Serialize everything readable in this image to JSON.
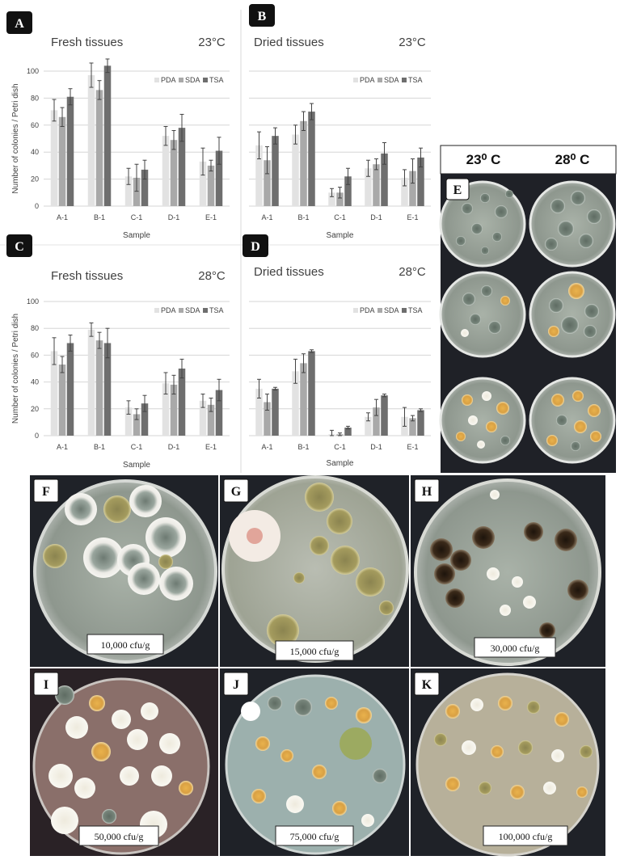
{
  "colors": {
    "PDA": "#e2e2e2",
    "SDA": "#a9a9a9",
    "TSA": "#6e6e6e",
    "grid": "#d6d6d6",
    "error_bar": "#444444",
    "photo_bg": "#1d1f24"
  },
  "chart_data": [
    {
      "panel": "A",
      "type": "bar",
      "title": "Fresh tissues",
      "temperature": "23°C",
      "xlabel": "Sample",
      "ylabel": "Number of colonies / Petri dish",
      "ylim": [
        0,
        100
      ],
      "yticks": [
        0,
        20,
        40,
        60,
        80,
        100
      ],
      "categories": [
        "A-1",
        "B-1",
        "C-1",
        "D-1",
        "E-1"
      ],
      "legend_position": "top-right",
      "series": [
        {
          "name": "PDA",
          "values": [
            71,
            97,
            22,
            52,
            33
          ],
          "errors": [
            8,
            9,
            6,
            7,
            10
          ]
        },
        {
          "name": "SDA",
          "values": [
            66,
            86,
            21,
            49,
            30
          ],
          "errors": [
            7,
            7,
            10,
            7,
            4
          ]
        },
        {
          "name": "TSA",
          "values": [
            81,
            104,
            27,
            58,
            41
          ],
          "errors": [
            6,
            5,
            7,
            10,
            10
          ]
        }
      ]
    },
    {
      "panel": "B",
      "type": "bar",
      "title": "Dried tissues",
      "temperature": "23°C",
      "xlabel": "Sample",
      "ylabel": "",
      "ylim": [
        0,
        100
      ],
      "yticks": [
        0,
        20,
        40,
        60,
        80,
        100
      ],
      "categories": [
        "A-1",
        "B-1",
        "C-1",
        "D-1",
        "E-1"
      ],
      "legend_position": "top-right",
      "series": [
        {
          "name": "PDA",
          "values": [
            45,
            53,
            10,
            28,
            21
          ],
          "errors": [
            10,
            7,
            3,
            6,
            6
          ]
        },
        {
          "name": "SDA",
          "values": [
            34,
            63,
            10,
            31,
            26
          ],
          "errors": [
            10,
            7,
            4,
            4,
            9
          ]
        },
        {
          "name": "TSA",
          "values": [
            52,
            70,
            22,
            39,
            36
          ],
          "errors": [
            6,
            6,
            6,
            8,
            7
          ]
        }
      ]
    },
    {
      "panel": "C",
      "type": "bar",
      "title": "Fresh tissues",
      "temperature": "28°C",
      "xlabel": "Sample",
      "ylabel": "Number of colonies / Petri dish",
      "ylim": [
        0,
        100
      ],
      "yticks": [
        0,
        20,
        40,
        60,
        80,
        100
      ],
      "categories": [
        "A-1",
        "B-1",
        "C-1",
        "D-1",
        "E-1"
      ],
      "legend_position": "top-right",
      "series": [
        {
          "name": "PDA",
          "values": [
            63,
            79,
            21,
            39,
            26
          ],
          "errors": [
            10,
            5,
            5,
            8,
            5
          ]
        },
        {
          "name": "SDA",
          "values": [
            53,
            71,
            16,
            38,
            23
          ],
          "errors": [
            6,
            6,
            4,
            7,
            5
          ]
        },
        {
          "name": "TSA",
          "values": [
            69,
            69,
            24,
            50,
            34
          ],
          "errors": [
            6,
            11,
            6,
            7,
            8
          ]
        }
      ]
    },
    {
      "panel": "D",
      "type": "bar",
      "title": "Dried tissues",
      "temperature": "28°C",
      "xlabel": "Sample",
      "ylabel": "",
      "ylim": [
        0,
        100
      ],
      "yticks": [
        0,
        20,
        40,
        60,
        80,
        100
      ],
      "categories": [
        "A-1",
        "B-1",
        "C-1",
        "D-1",
        "E-1"
      ],
      "legend_position": "top-right",
      "series": [
        {
          "name": "PDA",
          "values": [
            35,
            48,
            1,
            14,
            14
          ],
          "errors": [
            7,
            9,
            3,
            3,
            7
          ]
        },
        {
          "name": "SDA",
          "values": [
            25,
            54,
            1,
            21,
            13
          ],
          "errors": [
            6,
            7,
            1,
            6,
            2
          ]
        },
        {
          "name": "TSA",
          "values": [
            35,
            63,
            6,
            30,
            19
          ],
          "errors": [
            1,
            1,
            1,
            1,
            1
          ]
        }
      ]
    }
  ],
  "panel_letters": [
    "A",
    "B",
    "C",
    "D",
    "E",
    "F",
    "G",
    "H",
    "I",
    "J",
    "K"
  ],
  "temperature_header": {
    "left": "23⁰ C",
    "right": "28⁰ C"
  },
  "photo_labels": {
    "F": "10,000 cfu/g",
    "G": "15,000 cfu/g",
    "H": "30,000 cfu/g",
    "I": "50,000 cfu/g",
    "J": "75,000 cfu/g",
    "K": "100,000 cfu/g"
  }
}
